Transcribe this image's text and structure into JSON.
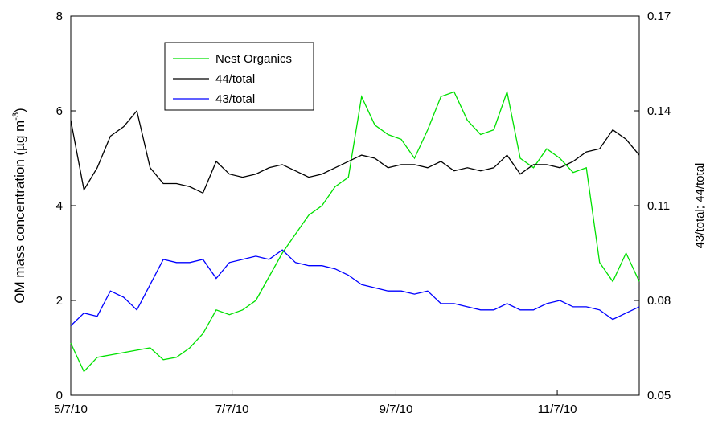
{
  "chart_data": {
    "type": "line",
    "y_label": "OM mass concentration (µg m",
    "y_label_sup": "-3",
    "y_label_end": ")",
    "y2_label": "43/total; 44/total",
    "x": [
      "5/7/10",
      "5/12/10",
      "5/17/10",
      "5/22/10",
      "5/27/10",
      "6/1/10",
      "6/6/10",
      "6/11/10",
      "6/16/10",
      "6/21/10",
      "6/26/10",
      "7/1/10",
      "7/6/10",
      "7/11/10",
      "7/16/10",
      "7/21/10",
      "7/26/10",
      "7/31/10",
      "8/5/10",
      "8/10/10",
      "8/15/10",
      "8/20/10",
      "8/25/10",
      "8/30/10",
      "9/4/10",
      "9/9/10",
      "9/14/10",
      "9/19/10",
      "9/24/10",
      "9/29/10",
      "10/4/10",
      "10/9/10",
      "10/14/10",
      "10/19/10",
      "10/24/10",
      "10/29/10",
      "11/3/10",
      "11/8/10",
      "11/13/10",
      "11/18/10",
      "11/23/10",
      "11/28/10",
      "12/3/10",
      "12/8/10"
    ],
    "xlim": [
      "5/7/10",
      "12/8/10"
    ],
    "xticks": [
      "5/7/10",
      "7/7/10",
      "9/7/10",
      "11/7/10"
    ],
    "ylim": [
      0,
      8
    ],
    "yticks": [
      0,
      2,
      4,
      6,
      8
    ],
    "y2lim": [
      0.05,
      0.17
    ],
    "y2ticks": [
      0.05,
      0.08,
      0.11,
      0.14,
      0.17
    ],
    "series": [
      {
        "name": "Nest Organics",
        "color": "#00e000",
        "axis": "y",
        "values": [
          1.1,
          0.5,
          0.8,
          0.85,
          0.9,
          0.95,
          1.0,
          0.75,
          0.8,
          1.0,
          1.3,
          1.8,
          1.7,
          1.8,
          2.0,
          2.5,
          3.0,
          3.4,
          3.8,
          4.0,
          4.4,
          4.6,
          6.3,
          5.7,
          5.5,
          5.4,
          5.0,
          5.6,
          6.3,
          6.4,
          5.8,
          5.5,
          5.6,
          6.4,
          5.0,
          4.8,
          5.2,
          5.0,
          4.7,
          4.8,
          2.8,
          2.4,
          3.0,
          2.4
        ]
      },
      {
        "name": "44/total",
        "color": "#000000",
        "axis": "y2",
        "values": [
          0.137,
          0.115,
          0.122,
          0.132,
          0.135,
          0.14,
          0.122,
          0.117,
          0.117,
          0.116,
          0.114,
          0.124,
          0.12,
          0.119,
          0.12,
          0.122,
          0.123,
          0.121,
          0.119,
          0.12,
          0.122,
          0.124,
          0.126,
          0.125,
          0.122,
          0.123,
          0.123,
          0.122,
          0.124,
          0.121,
          0.122,
          0.121,
          0.122,
          0.126,
          0.12,
          0.123,
          0.123,
          0.122,
          0.124,
          0.127,
          0.128,
          0.134,
          0.131,
          0.126
        ]
      },
      {
        "name": "43/total",
        "color": "#0000ff",
        "axis": "y2",
        "values": [
          0.072,
          0.076,
          0.075,
          0.083,
          0.081,
          0.077,
          0.085,
          0.093,
          0.092,
          0.092,
          0.093,
          0.087,
          0.092,
          0.093,
          0.094,
          0.093,
          0.096,
          0.092,
          0.091,
          0.091,
          0.09,
          0.088,
          0.085,
          0.084,
          0.083,
          0.083,
          0.082,
          0.083,
          0.079,
          0.079,
          0.078,
          0.077,
          0.077,
          0.079,
          0.077,
          0.077,
          0.079,
          0.08,
          0.078,
          0.078,
          0.077,
          0.074,
          0.076,
          0.078
        ]
      }
    ]
  }
}
